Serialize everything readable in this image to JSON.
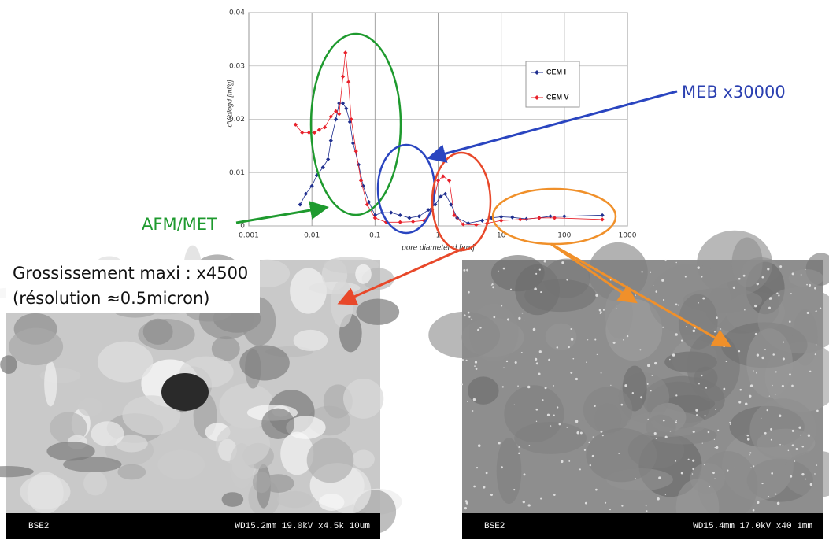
{
  "chart_data": {
    "type": "line",
    "y_label": "dV/dlogd [ml/g]",
    "x_label": "pore diameter d [µm]",
    "xlim": [
      0.001,
      1000
    ],
    "xticks": [
      0.001,
      0.01,
      0.1,
      1,
      10,
      100,
      1000
    ],
    "x_log": true,
    "ylim": [
      0,
      0.04
    ],
    "yticks": [
      0,
      0.01,
      0.02,
      0.03,
      0.04
    ],
    "grid": true,
    "legend": "upper right",
    "series": [
      {
        "name": "CEM I",
        "color": "#1f2f8f",
        "x": [
          0.0065,
          0.008,
          0.01,
          0.012,
          0.015,
          0.018,
          0.02,
          0.024,
          0.027,
          0.031,
          0.035,
          0.04,
          0.045,
          0.055,
          0.065,
          0.08,
          0.1,
          0.13,
          0.18,
          0.25,
          0.35,
          0.5,
          0.7,
          0.9,
          1.1,
          1.3,
          1.6,
          2,
          3,
          5,
          7,
          10,
          15,
          25,
          40,
          60,
          100,
          400
        ],
        "values": [
          0.004,
          0.006,
          0.0075,
          0.0095,
          0.011,
          0.0125,
          0.016,
          0.02,
          0.023,
          0.023,
          0.022,
          0.0195,
          0.0155,
          0.0115,
          0.0075,
          0.0045,
          0.002,
          0.0025,
          0.0025,
          0.002,
          0.0015,
          0.0018,
          0.003,
          0.004,
          0.0055,
          0.006,
          0.004,
          0.0015,
          0.0005,
          0.001,
          0.0015,
          0.0017,
          0.0016,
          0.0013,
          0.0015,
          0.0018,
          0.0018,
          0.002
        ]
      },
      {
        "name": "CEM V",
        "color": "#e8202a",
        "x": [
          0.0055,
          0.007,
          0.009,
          0.011,
          0.013,
          0.016,
          0.02,
          0.024,
          0.027,
          0.031,
          0.034,
          0.038,
          0.042,
          0.05,
          0.06,
          0.075,
          0.1,
          0.15,
          0.25,
          0.4,
          0.6,
          0.8,
          1,
          1.2,
          1.5,
          1.8,
          2.5,
          4,
          6,
          10,
          20,
          40,
          70,
          400
        ],
        "values": [
          0.019,
          0.0175,
          0.0175,
          0.0175,
          0.018,
          0.0185,
          0.0205,
          0.0215,
          0.021,
          0.028,
          0.0325,
          0.027,
          0.02,
          0.014,
          0.0085,
          0.004,
          0.0015,
          0.0007,
          0.0007,
          0.0008,
          0.001,
          0.003,
          0.0085,
          0.0093,
          0.0085,
          0.002,
          0.0003,
          0.0002,
          0.0005,
          0.001,
          0.0012,
          0.0015,
          0.0015,
          0.0012
        ]
      }
    ],
    "annotations": [
      "MEB x30000",
      "AFM/MET",
      "Grossissement maxi : x4500",
      "(résolution ≈0.5micron)"
    ]
  },
  "images": [
    {
      "left_caption": "BSE2",
      "right_caption": "WD15.2mm 19.0kV x4.5k 10um"
    },
    {
      "left_caption": "BSE2",
      "right_caption": "WD15.4mm 17.0kV x40 1mm"
    }
  ]
}
